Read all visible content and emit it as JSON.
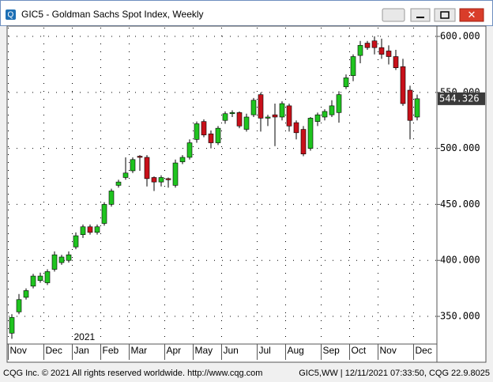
{
  "window_title": "GIC5 - Goldman Sachs Spot Index, Weekly",
  "footer_left": "CQG Inc. © 2021 All rights reserved worldwide. http://www.cqg.com",
  "footer_right": "GIC5,WW | 12/11/2021 07:33:50, CQG 22.9.8025",
  "chart_data": {
    "type": "candlestick",
    "year_label": "2021",
    "categories": [
      "Nov",
      null,
      null,
      null,
      null,
      "Dec",
      null,
      null,
      null,
      "Jan",
      null,
      null,
      null,
      "Feb",
      null,
      null,
      null,
      "Mar",
      null,
      null,
      null,
      null,
      "Apr",
      null,
      null,
      null,
      "May",
      null,
      null,
      null,
      "Jun",
      null,
      null,
      null,
      null,
      "Jul",
      null,
      null,
      null,
      "Aug",
      null,
      null,
      null,
      null,
      "Sep",
      null,
      null,
      null,
      "Oct",
      null,
      null,
      null,
      "Nov",
      null,
      null,
      null,
      null,
      "Dec"
    ],
    "open": [
      335,
      354,
      367,
      377,
      382,
      380,
      392,
      398,
      400,
      412,
      423,
      430,
      425,
      433,
      450,
      467,
      474,
      480,
      493,
      492,
      474,
      470,
      473,
      467,
      488,
      492,
      508,
      524,
      513,
      505,
      525,
      531,
      532,
      517,
      530,
      548,
      527,
      530,
      528,
      538,
      523,
      517,
      500,
      524,
      528,
      530,
      532,
      555,
      565,
      583,
      594,
      596,
      590,
      587,
      582,
      573,
      552,
      528
    ],
    "high": [
      352,
      370,
      375,
      388,
      389,
      392,
      408,
      405,
      408,
      425,
      432,
      432,
      432,
      452,
      464,
      472,
      492,
      492,
      494,
      494,
      475,
      476,
      474,
      490,
      494,
      508,
      524,
      526,
      516,
      520,
      533,
      534,
      533,
      531,
      545,
      550,
      530,
      540,
      542,
      540,
      525,
      520,
      528,
      532,
      535,
      543,
      551,
      566,
      584,
      596,
      596,
      600,
      598,
      592,
      588,
      580,
      556,
      548
    ],
    "low": [
      330,
      352,
      365,
      375,
      380,
      378,
      390,
      396,
      398,
      410,
      420,
      423,
      423,
      431,
      448,
      465,
      472,
      478,
      480,
      466,
      462,
      466,
      465,
      465,
      486,
      490,
      505,
      510,
      500,
      503,
      522,
      528,
      518,
      515,
      528,
      515,
      520,
      502,
      525,
      515,
      508,
      493,
      498,
      520,
      525,
      528,
      523,
      553,
      560,
      576,
      588,
      584,
      580,
      575,
      570,
      538,
      508,
      525
    ],
    "close": [
      349,
      365,
      373,
      386,
      386,
      390,
      405,
      403,
      405,
      422,
      430,
      425,
      430,
      450,
      462,
      470,
      478,
      490,
      492,
      473,
      470,
      474,
      472,
      487,
      492,
      505,
      522,
      512,
      505,
      518,
      531,
      532,
      520,
      528,
      543,
      527,
      528,
      528,
      540,
      520,
      514,
      495,
      527,
      530,
      533,
      538,
      548,
      563,
      582,
      592,
      590,
      590,
      584,
      582,
      572,
      540,
      525,
      544.326
    ],
    "up_color": "#1fc41f",
    "down_color": "#c8101a",
    "ylim": [
      325.3,
      607.8
    ],
    "yticks": [
      {
        "value": 350,
        "label": "350.000"
      },
      {
        "value": 400,
        "label": "400.000"
      },
      {
        "value": 450,
        "label": "450.000"
      },
      {
        "value": 500,
        "label": "500.000"
      },
      {
        "value": 550,
        "label": "550.000"
      },
      {
        "value": 600,
        "label": "600.000"
      }
    ],
    "grid": true
  }
}
